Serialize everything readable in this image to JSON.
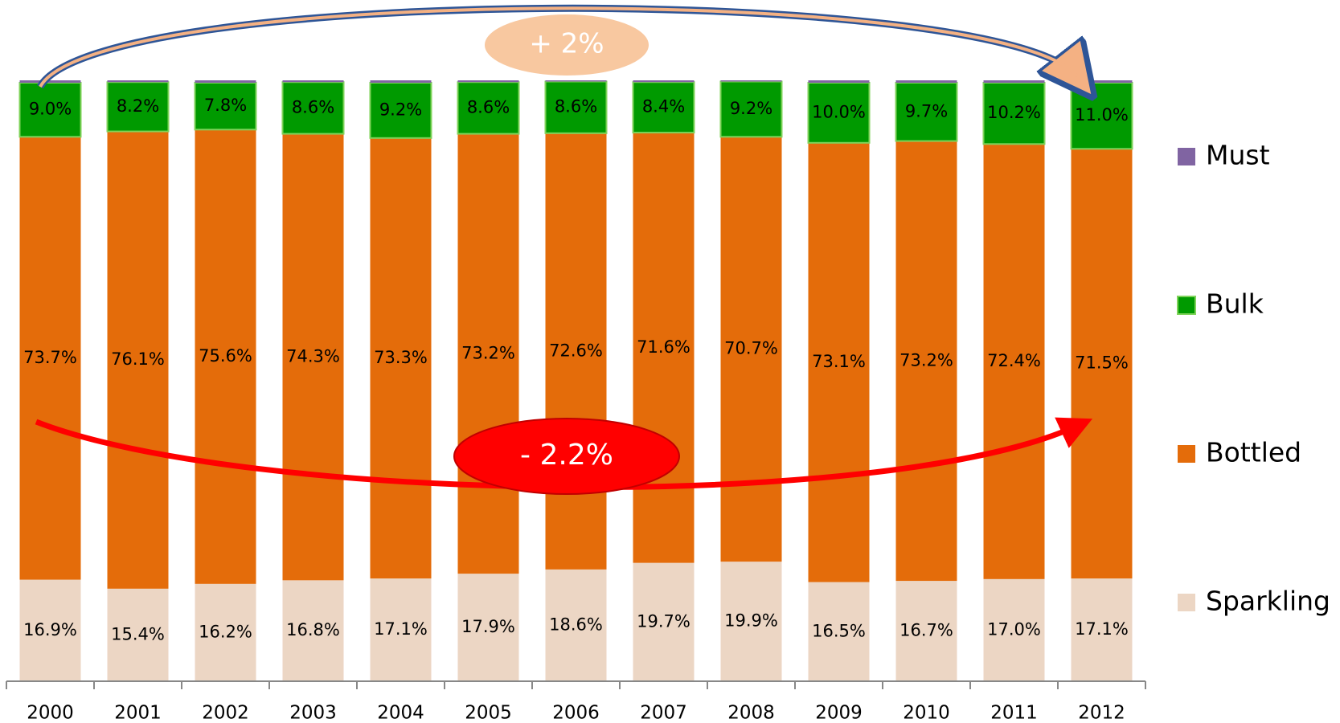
{
  "chart_data": {
    "type": "stacked_bar",
    "categories": [
      "2000",
      "2001",
      "2002",
      "2003",
      "2004",
      "2005",
      "2006",
      "2007",
      "2008",
      "2009",
      "2010",
      "2011",
      "2012"
    ],
    "series": [
      {
        "name": "Sparkling",
        "color": "#ecd6c4",
        "values": [
          16.9,
          15.4,
          16.2,
          16.8,
          17.1,
          17.9,
          18.6,
          19.7,
          19.9,
          16.5,
          16.7,
          17.0,
          17.1
        ],
        "value_labels": [
          "16.9%",
          "15.4%",
          "16.2%",
          "16.8%",
          "17.1%",
          "17.9%",
          "18.6%",
          "19.7%",
          "19.9%",
          "16.5%",
          "16.7%",
          "17.0%",
          "17.1%"
        ]
      },
      {
        "name": "Bottled",
        "color": "#e46c0a",
        "values": [
          73.7,
          76.1,
          75.6,
          74.3,
          73.3,
          73.2,
          72.6,
          71.6,
          70.7,
          73.1,
          73.2,
          72.4,
          71.5
        ],
        "value_labels": [
          "73.7%",
          "76.1%",
          "75.6%",
          "74.3%",
          "73.3%",
          "73.2%",
          "72.6%",
          "71.6%",
          "70.7%",
          "73.1%",
          "73.2%",
          "72.4%",
          "71.5%"
        ]
      },
      {
        "name": "Bulk",
        "color": "#009a00",
        "values": [
          9.0,
          8.2,
          7.8,
          8.6,
          9.2,
          8.6,
          8.6,
          8.4,
          9.2,
          10.0,
          9.7,
          10.2,
          11.0
        ],
        "value_labels": [
          "9.0%",
          "8.2%",
          "7.8%",
          "8.6%",
          "9.2%",
          "8.6%",
          "8.6%",
          "8.4%",
          "9.2%",
          "10.0%",
          "9.7%",
          "10.2%",
          "11.0%"
        ]
      },
      {
        "name": "Must",
        "color": "#8064a2",
        "values": [
          0.4,
          0.3,
          0.4,
          0.3,
          0.4,
          0.3,
          0.2,
          0.3,
          0.2,
          0.4,
          0.4,
          0.4,
          0.4
        ]
      }
    ],
    "ylim": [
      0,
      100
    ],
    "annotations": [
      "+ 2%",
      "- 2.2%"
    ]
  }
}
